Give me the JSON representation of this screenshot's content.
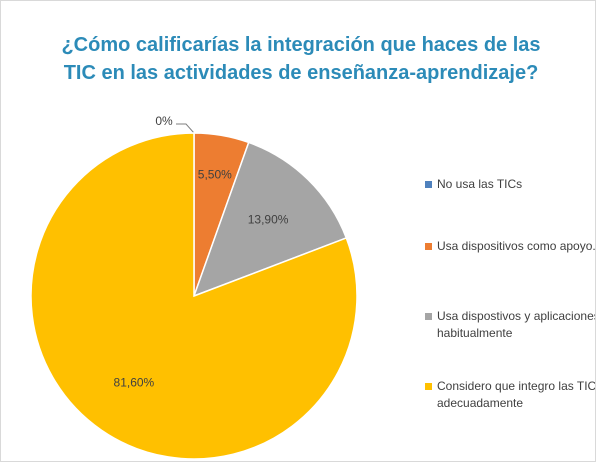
{
  "chart_data": {
    "type": "pie",
    "title": "¿Cómo calificarías la integración que haces de las TIC en las actividades de enseñanza-aprendizaje?",
    "categories": [
      "No usa las TICs",
      "Usa dispositivos como apoyo.",
      "Usa dispostivos y aplicaciones habitualmente",
      "Considero que integro las TIC adecuadamente"
    ],
    "values": [
      0,
      5.5,
      13.9,
      81.6
    ],
    "value_labels": [
      "0%",
      "5,50%",
      "13,90%",
      "81,60%"
    ],
    "colors": [
      "#4f81bd",
      "#ed7d31",
      "#a5a5a5",
      "#ffc000"
    ],
    "legend": "right"
  }
}
